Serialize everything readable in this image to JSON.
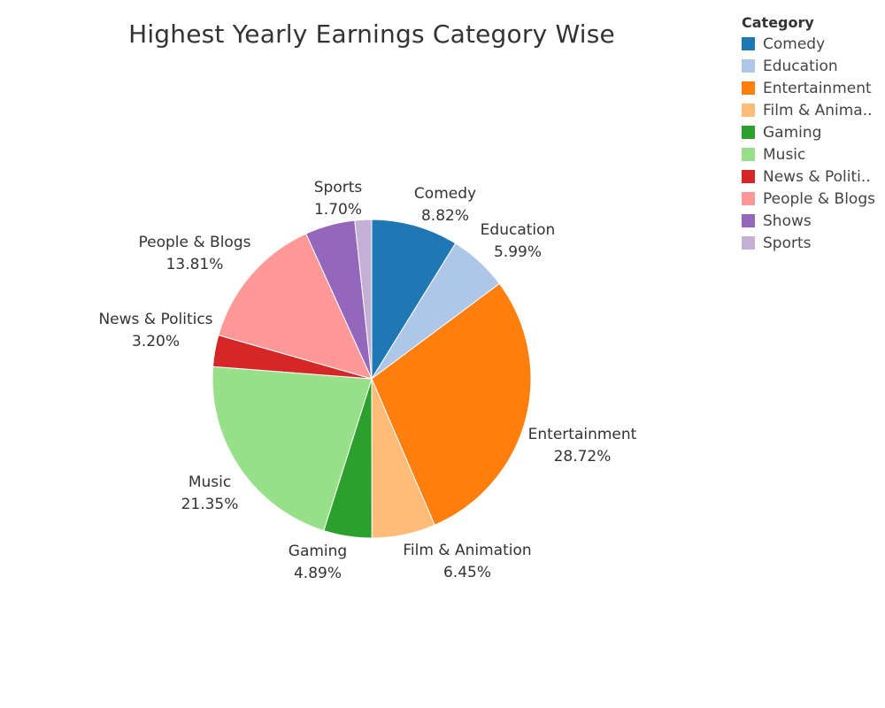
{
  "chart_data": {
    "type": "pie",
    "title": "Highest Yearly Earnings Category Wise",
    "legend_title": "Category",
    "legend_placement": "top-right",
    "slices": [
      {
        "name": "Comedy",
        "legend_label": "Comedy",
        "percent_label": "8.82%",
        "value": 8.82,
        "color": "#1f77b4"
      },
      {
        "name": "Education",
        "legend_label": "Education",
        "percent_label": "5.99%",
        "value": 5.99,
        "color": "#aec7e8"
      },
      {
        "name": "Entertainment",
        "legend_label": "Entertainment",
        "percent_label": "28.72%",
        "value": 28.72,
        "color": "#ff7f0e"
      },
      {
        "name": "Film & Animation",
        "legend_label": "Film & Anima..",
        "percent_label": "6.45%",
        "value": 6.45,
        "color": "#ffbb78"
      },
      {
        "name": "Gaming",
        "legend_label": "Gaming",
        "percent_label": "4.89%",
        "value": 4.89,
        "color": "#2ca02c"
      },
      {
        "name": "Music",
        "legend_label": "Music",
        "percent_label": "21.35%",
        "value": 21.35,
        "color": "#98df8a"
      },
      {
        "name": "News & Politics",
        "legend_label": "News & Politi..",
        "percent_label": "3.20%",
        "value": 3.2,
        "color": "#d62728"
      },
      {
        "name": "People & Blogs",
        "legend_label": "People & Blogs",
        "percent_label": "13.81%",
        "value": 13.81,
        "color": "#ff9896"
      },
      {
        "name": "Shows",
        "legend_label": "Shows",
        "percent_label": "",
        "value": 5.07,
        "color": "#9467bd"
      },
      {
        "name": "Sports",
        "legend_label": "Sports",
        "percent_label": "1.70%",
        "value": 1.7,
        "color": "#c5b0d5"
      }
    ]
  }
}
